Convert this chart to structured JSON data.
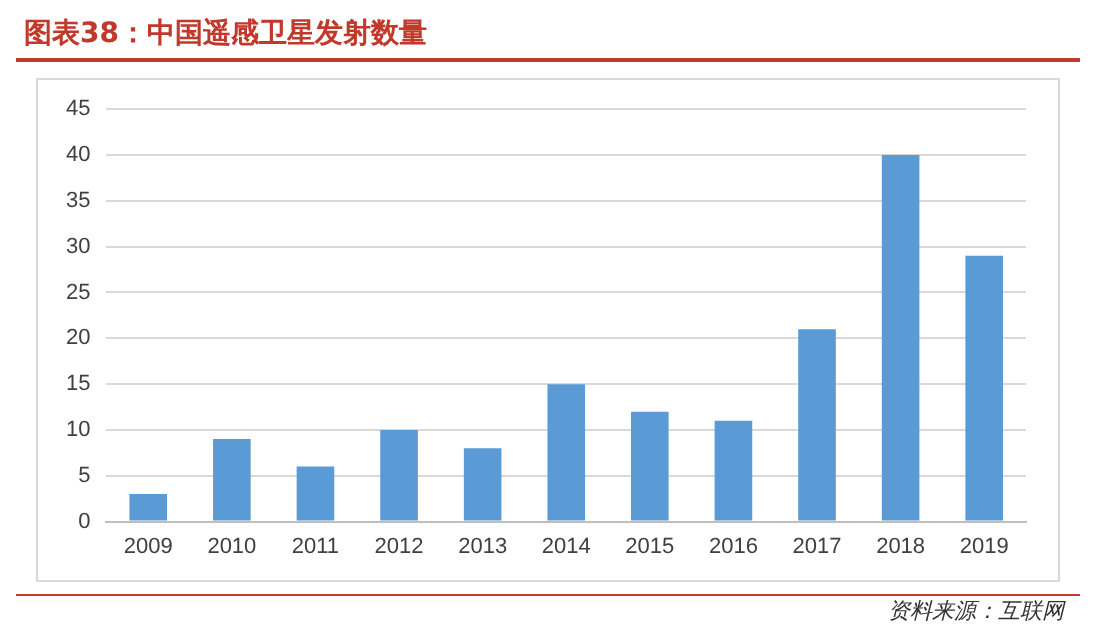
{
  "chart_data": {
    "type": "bar",
    "title": "图表38：中国遥感卫星发射数量",
    "categories": [
      "2009",
      "2010",
      "2011",
      "2012",
      "2013",
      "2014",
      "2015",
      "2016",
      "2017",
      "2018",
      "2019"
    ],
    "values": [
      3,
      9,
      6,
      10,
      8,
      15,
      12,
      11,
      21,
      40,
      29
    ],
    "color": "#5b9bd5",
    "ylim": [
      0,
      45
    ],
    "yticks": [
      0,
      5,
      10,
      15,
      20,
      25,
      30,
      35,
      40,
      45
    ],
    "grid": "y",
    "legend": false,
    "annotations": [
      "资料来源：互联网"
    ]
  }
}
